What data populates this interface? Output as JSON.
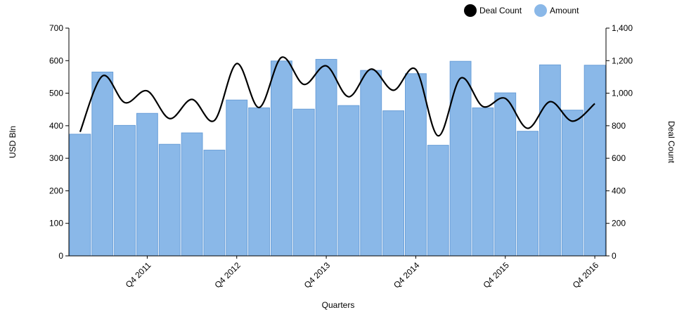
{
  "chart_data": {
    "type": "bar",
    "xlabel": "Quarters",
    "ylabel_left": "USD Bln",
    "ylabel_right": "Deal Count",
    "ylim_left": [
      0,
      700
    ],
    "ylim_right": [
      0,
      1400
    ],
    "yticks_left": [
      "0",
      "100",
      "200",
      "300",
      "400",
      "500",
      "600",
      "700"
    ],
    "yticks_right": [
      "0",
      "200",
      "400",
      "600",
      "800",
      "1,000",
      "1,200",
      "1,400"
    ],
    "x_tick_labels": [
      {
        "index": 3,
        "label": "Q4 2011"
      },
      {
        "index": 7,
        "label": "Q4 2012"
      },
      {
        "index": 11,
        "label": "Q4 2013"
      },
      {
        "index": 15,
        "label": "Q4 2014"
      },
      {
        "index": 19,
        "label": "Q4 2015"
      },
      {
        "index": 23,
        "label": "Q4 2016"
      }
    ],
    "grid": false,
    "legend_position": "top-right",
    "series": [
      {
        "name": "Amount",
        "type": "bar",
        "axis": "left",
        "color": "#8ab8e8",
        "values": [
          374,
          565,
          401,
          438,
          343,
          378,
          325,
          479,
          455,
          599,
          451,
          604,
          462,
          570,
          446,
          560,
          340,
          598,
          455,
          501,
          383,
          587,
          448,
          586
        ]
      },
      {
        "name": "Deal Count",
        "type": "line",
        "axis": "right",
        "color": "#000000",
        "values": [
          762,
          1106,
          942,
          1014,
          844,
          962,
          832,
          1182,
          912,
          1220,
          1054,
          1168,
          978,
          1148,
          1018,
          1146,
          738,
          1092,
          918,
          968,
          784,
          948,
          828,
          936
        ]
      }
    ]
  }
}
